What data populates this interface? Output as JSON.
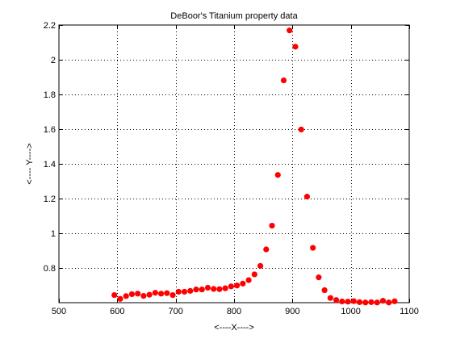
{
  "chart_data": {
    "type": "scatter",
    "title": "DeBoor's Titanium property data",
    "xlabel": "<----X---->",
    "ylabel": "<---- Y---->",
    "xlim": [
      500,
      1100
    ],
    "ylim": [
      0.6,
      2.2
    ],
    "xticks": [
      500,
      600,
      700,
      800,
      900,
      1000,
      1100
    ],
    "xtick_labels": [
      "500",
      "600",
      "700",
      "800",
      "900",
      "1000",
      "1100"
    ],
    "yticks": [
      0.8,
      1.0,
      1.2,
      1.4,
      1.6,
      1.8,
      2.0,
      2.2
    ],
    "ytick_labels": [
      "0.8",
      "1",
      "1.2",
      "1.4",
      "1.6",
      "1.8",
      "2",
      "2.2"
    ],
    "grid": true,
    "marker_color": "#ff0000",
    "series": [
      {
        "x": [
          595,
          605,
          615,
          625,
          635,
          645,
          655,
          665,
          675,
          685,
          695,
          705,
          715,
          725,
          735,
          745,
          755,
          765,
          775,
          785,
          795,
          805,
          815,
          825,
          835,
          845,
          855,
          865,
          875,
          885,
          895,
          905,
          915,
          925,
          935,
          945,
          955,
          965,
          975,
          985,
          995,
          1005,
          1015,
          1025,
          1035,
          1045,
          1055,
          1065,
          1075
        ],
        "y": [
          0.644,
          0.622,
          0.638,
          0.649,
          0.652,
          0.639,
          0.646,
          0.657,
          0.652,
          0.655,
          0.644,
          0.663,
          0.663,
          0.668,
          0.676,
          0.676,
          0.686,
          0.679,
          0.678,
          0.683,
          0.694,
          0.699,
          0.71,
          0.73,
          0.763,
          0.812,
          0.907,
          1.044,
          1.336,
          1.881,
          2.169,
          2.075,
          1.598,
          1.211,
          0.916,
          0.746,
          0.672,
          0.627,
          0.615,
          0.607,
          0.606,
          0.609,
          0.603,
          0.601,
          0.603,
          0.601,
          0.611,
          0.601,
          0.608
        ]
      }
    ]
  }
}
